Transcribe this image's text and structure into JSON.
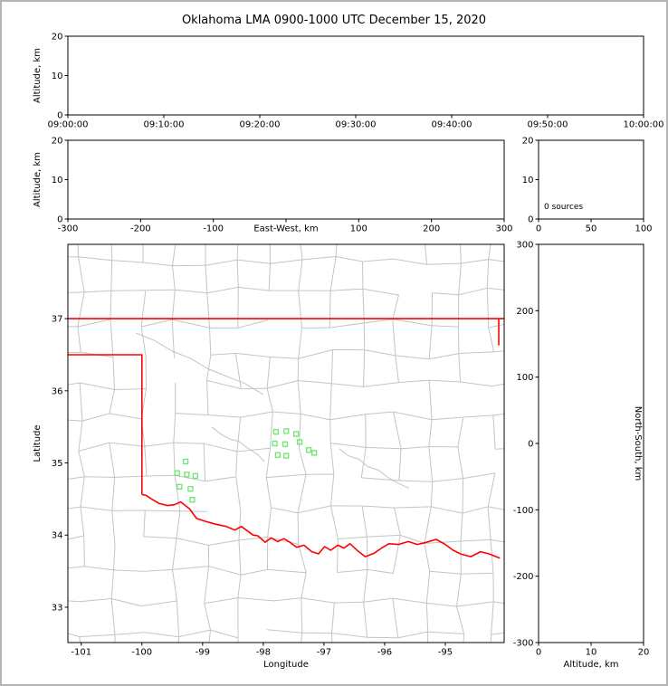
{
  "title": "Oklahoma LMA 0900-1000 UTC December 15, 2020",
  "colors": {
    "background": "#ffffff",
    "frame_border": "#b4b4b4",
    "axis": "#000000",
    "county_lines": "#c4c4c4",
    "state_boundary": "#ff0000",
    "stations": "#6ce86c"
  },
  "chart_data": [
    {
      "id": "time_height",
      "type": "scatter",
      "ylabel": "Altitude, km",
      "ylim": [
        0,
        20
      ],
      "yticks": [
        0,
        10,
        20
      ],
      "xtick_labels": [
        "09:00:00",
        "09:10:00",
        "09:20:00",
        "09:30:00",
        "09:40:00",
        "09:50:00",
        "10:00:00"
      ],
      "points": []
    },
    {
      "id": "ew_height",
      "type": "scatter",
      "xlabel": "East-West, km",
      "xlim": [
        -300,
        300
      ],
      "xticks": [
        -300,
        -200,
        -100,
        0,
        100,
        200,
        300
      ],
      "ylabel": "Altitude, km",
      "ylim": [
        0,
        20
      ],
      "yticks": [
        0,
        10,
        20
      ],
      "points": []
    },
    {
      "id": "altitude_histogram",
      "type": "line",
      "xlim": [
        0,
        100
      ],
      "xticks": [
        0,
        50,
        100
      ],
      "ylim": [
        0,
        20
      ],
      "yticks": [
        0,
        10,
        20
      ],
      "annotation": "0 sources",
      "points": []
    },
    {
      "id": "plan_view",
      "type": "scatter",
      "xlabel": "Longitude",
      "ylabel": "Latitude",
      "xlim": [
        -101.22,
        -94.03
      ],
      "xticks": [
        -101,
        -100,
        -99,
        -98,
        -97,
        -96,
        -95
      ],
      "ylim": [
        32.51,
        38.03
      ],
      "yticks": [
        33,
        34,
        35,
        36,
        37
      ],
      "stations": [
        [
          -97.79,
          35.43
        ],
        [
          -97.62,
          35.44
        ],
        [
          -97.46,
          35.4
        ],
        [
          -97.81,
          35.27
        ],
        [
          -97.64,
          35.26
        ],
        [
          -97.4,
          35.29
        ],
        [
          -97.76,
          35.11
        ],
        [
          -97.62,
          35.1
        ],
        [
          -97.25,
          35.18
        ],
        [
          -97.16,
          35.14
        ],
        [
          -99.28,
          35.02
        ],
        [
          -99.42,
          34.86
        ],
        [
          -99.26,
          34.84
        ],
        [
          -99.12,
          34.82
        ],
        [
          -99.38,
          34.67
        ],
        [
          -99.2,
          34.64
        ],
        [
          -99.17,
          34.49
        ]
      ],
      "state_boundary": [
        [
          [
            -101.22,
            37.0
          ],
          [
            -94.03,
            37.0
          ]
        ],
        [
          [
            -94.12,
            37.0
          ],
          [
            -94.12,
            36.63
          ]
        ],
        [
          [
            -101.22,
            36.5
          ],
          [
            -100.0,
            36.5
          ],
          [
            -100.0,
            34.563
          ]
        ],
        [
          [
            -100.0,
            34.563
          ],
          [
            -99.93,
            34.55
          ],
          [
            -99.84,
            34.5
          ],
          [
            -99.72,
            34.44
          ],
          [
            -99.58,
            34.41
          ],
          [
            -99.47,
            34.42
          ],
          [
            -99.36,
            34.46
          ],
          [
            -99.21,
            34.36
          ],
          [
            -99.1,
            34.23
          ],
          [
            -98.95,
            34.19
          ],
          [
            -98.78,
            34.15
          ],
          [
            -98.61,
            34.12
          ],
          [
            -98.47,
            34.07
          ],
          [
            -98.36,
            34.12
          ],
          [
            -98.17,
            34.0
          ],
          [
            -98.09,
            33.99
          ],
          [
            -97.97,
            33.9
          ],
          [
            -97.87,
            33.96
          ],
          [
            -97.76,
            33.91
          ],
          [
            -97.66,
            33.95
          ],
          [
            -97.56,
            33.9
          ],
          [
            -97.45,
            33.83
          ],
          [
            -97.33,
            33.86
          ],
          [
            -97.2,
            33.77
          ],
          [
            -97.09,
            33.74
          ],
          [
            -96.99,
            33.84
          ],
          [
            -96.89,
            33.79
          ],
          [
            -96.77,
            33.86
          ],
          [
            -96.67,
            33.82
          ],
          [
            -96.57,
            33.88
          ],
          [
            -96.44,
            33.78
          ],
          [
            -96.32,
            33.7
          ],
          [
            -96.17,
            33.75
          ],
          [
            -96.05,
            33.82
          ],
          [
            -95.93,
            33.88
          ],
          [
            -95.77,
            33.87
          ],
          [
            -95.61,
            33.91
          ],
          [
            -95.46,
            33.87
          ],
          [
            -95.31,
            33.9
          ],
          [
            -95.15,
            33.94
          ],
          [
            -95.0,
            33.87
          ],
          [
            -94.87,
            33.79
          ],
          [
            -94.75,
            33.74
          ],
          [
            -94.58,
            33.7
          ],
          [
            -94.42,
            33.77
          ],
          [
            -94.28,
            33.74
          ],
          [
            -94.1,
            33.68
          ]
        ]
      ],
      "rivers": [
        [
          [
            -96.75,
            35.2
          ],
          [
            -96.6,
            35.1
          ],
          [
            -96.42,
            35.05
          ],
          [
            -96.28,
            34.95
          ],
          [
            -96.1,
            34.9
          ],
          [
            -95.95,
            34.8
          ],
          [
            -95.78,
            34.72
          ],
          [
            -95.6,
            34.65
          ]
        ],
        [
          [
            -98.85,
            35.5
          ],
          [
            -98.7,
            35.4
          ],
          [
            -98.55,
            35.33
          ],
          [
            -98.4,
            35.3
          ],
          [
            -98.28,
            35.22
          ],
          [
            -98.1,
            35.12
          ],
          [
            -97.98,
            35.02
          ]
        ],
        [
          [
            -100.1,
            36.8
          ],
          [
            -99.8,
            36.7
          ],
          [
            -99.5,
            36.55
          ],
          [
            -99.2,
            36.45
          ],
          [
            -98.9,
            36.3
          ],
          [
            -98.6,
            36.2
          ],
          [
            -98.3,
            36.1
          ],
          [
            -98.0,
            35.95
          ]
        ]
      ],
      "county_grid": {
        "dx": 0.52,
        "dy": 0.43,
        "jitter": 0.07,
        "drop": 0.16,
        "seed": 11
      }
    },
    {
      "id": "ns_height",
      "type": "scatter",
      "xlabel": "Altitude, km",
      "xlim": [
        0,
        20
      ],
      "xticks": [
        0,
        10,
        20
      ],
      "ylabel": "North-South, km",
      "ylim": [
        -300,
        300
      ],
      "yticks": [
        300,
        200,
        100,
        0,
        -100,
        -200,
        -300
      ],
      "points": []
    }
  ]
}
